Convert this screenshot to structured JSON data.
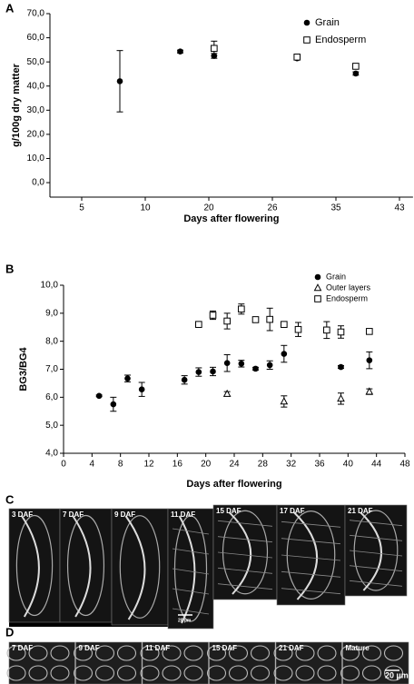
{
  "chart_data": [
    {
      "panel": "A",
      "type": "scatter",
      "y_label": "g/100g dry matter",
      "x_label": "Days after flowering",
      "xlim": [
        2.5,
        44.7
      ],
      "xticks": [
        5,
        10,
        20,
        26,
        35,
        43
      ],
      "ylim": [
        -6,
        70
      ],
      "yticks": [
        {
          "value": 0,
          "label": "0,0"
        },
        {
          "value": 10,
          "label": "10,0"
        },
        {
          "value": 20,
          "label": "20,0"
        },
        {
          "value": 30,
          "label": "30,0"
        },
        {
          "value": 40,
          "label": "40,0"
        },
        {
          "value": 50,
          "label": "50,0"
        },
        {
          "value": 60,
          "label": "60,0"
        },
        {
          "value": 70,
          "label": "70,0"
        }
      ],
      "legend": "upper right",
      "series": [
        {
          "name": "Grain",
          "color": "#000000",
          "marker": "circle",
          "x": [
            8,
            15.5,
            20.5,
            29.5,
            37.5
          ],
          "values": [
            42,
            54.3,
            52.5,
            51.5,
            45.2
          ],
          "errors": [
            12.7,
            0.6,
            1,
            0.5,
            0.7
          ]
        },
        {
          "name": "Endosperm",
          "color": "#000000",
          "marker": "square",
          "x": [
            20.5,
            29.5,
            37.5
          ],
          "values": [
            55.6,
            52,
            48.2
          ],
          "errors": [
            3,
            1,
            0.7
          ]
        }
      ]
    },
    {
      "panel": "B",
      "type": "scatter",
      "y_label": "BG3/BG4",
      "x_label": "Days after flowering",
      "xlim": [
        0,
        48
      ],
      "xticks": [
        0,
        4,
        8,
        12,
        16,
        20,
        24,
        28,
        32,
        36,
        40,
        44,
        48
      ],
      "ylim": [
        4,
        10
      ],
      "yticks": [
        {
          "value": 4,
          "label": "4,0"
        },
        {
          "value": 5,
          "label": "5,0"
        },
        {
          "value": 6,
          "label": "6,0"
        },
        {
          "value": 7,
          "label": "7,0"
        },
        {
          "value": 8,
          "label": "8,0"
        },
        {
          "value": 9,
          "label": "9,0"
        },
        {
          "value": 10,
          "label": "10,0"
        }
      ],
      "legend": "upper right",
      "series": [
        {
          "name": "Grain",
          "color": "#000000",
          "marker": "circle",
          "x": [
            5,
            7,
            9,
            11,
            17,
            19,
            21,
            23,
            25,
            27,
            29,
            31,
            39,
            43
          ],
          "values": [
            6.05,
            5.75,
            6.67,
            6.28,
            6.62,
            6.9,
            6.92,
            7.22,
            7.2,
            7.02,
            7.15,
            7.55,
            7.08,
            7.32
          ],
          "errors": [
            0.03,
            0.25,
            0.12,
            0.25,
            0.15,
            0.15,
            0.15,
            0.3,
            0.12,
            0.05,
            0.15,
            0.3,
            0.05,
            0.3
          ]
        },
        {
          "name": "Outer layers",
          "color": "#000000",
          "marker": "triangle",
          "x": [
            23,
            31,
            39,
            43
          ],
          "values": [
            6.12,
            5.85,
            5.95,
            6.2
          ],
          "errors": [
            0.08,
            0.2,
            0.2,
            0.1
          ]
        },
        {
          "name": "Endosperm",
          "color": "#000000",
          "marker": "square",
          "x": [
            19,
            21,
            23,
            25,
            27,
            29,
            31,
            33,
            37,
            39,
            43
          ],
          "values": [
            8.6,
            8.93,
            8.72,
            9.15,
            8.77,
            8.78,
            8.6,
            8.42,
            8.4,
            8.33,
            8.35
          ],
          "errors": [
            0.05,
            0.15,
            0.28,
            0.18,
            0.05,
            0.4,
            0.05,
            0.25,
            0.3,
            0.22,
            0.08
          ]
        }
      ]
    }
  ],
  "figure_panels": [
    {
      "label": "C",
      "images": [
        "3 DAF",
        "7 DAF",
        "9 DAF",
        "11 DAF",
        "15 DAF",
        "17 DAF",
        "21 DAF"
      ],
      "scale_bar": "20 µm"
    },
    {
      "label": "D",
      "images": [
        "7 DAF",
        "9 DAF",
        "11 DAF",
        "15 DAF",
        "21 DAF",
        "Mature"
      ],
      "scale_bar": "20 µm"
    }
  ]
}
